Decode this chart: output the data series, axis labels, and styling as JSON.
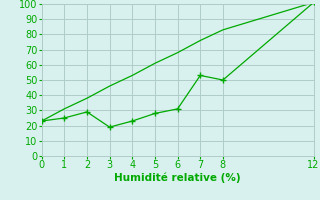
{
  "title": "",
  "xlabel": "Humidité relative (%)",
  "background_color": "#d8f0ee",
  "grid_color": "#b0ccc8",
  "line_color": "#00aa00",
  "marker_color": "#00aa00",
  "x_zigzag": [
    0,
    1,
    2,
    3,
    4,
    5,
    6,
    7,
    8,
    12
  ],
  "y_zigzag": [
    23,
    25,
    29,
    19,
    23,
    28,
    31,
    53,
    50,
    101
  ],
  "x_trend": [
    0,
    1,
    2,
    3,
    4,
    5,
    6,
    7,
    8,
    12
  ],
  "y_trend": [
    23,
    31,
    38,
    46,
    53,
    61,
    68,
    76,
    83,
    101
  ],
  "xlim": [
    0,
    12
  ],
  "ylim": [
    0,
    100
  ],
  "xticks": [
    0,
    1,
    2,
    3,
    4,
    5,
    6,
    7,
    8,
    12
  ],
  "yticks": [
    0,
    10,
    20,
    30,
    40,
    50,
    60,
    70,
    80,
    90,
    100
  ],
  "xlabel_color": "#00aa00",
  "tick_color": "#00aa00",
  "xlabel_fontsize": 7.5,
  "tick_fontsize": 7
}
